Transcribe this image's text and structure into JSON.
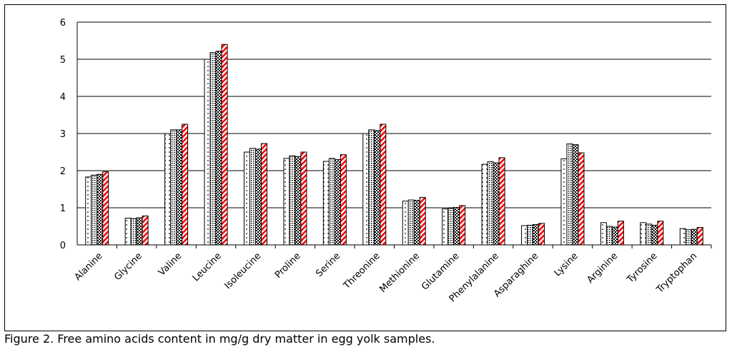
{
  "caption": "Figure 2. Free amino acids content in mg/g dry matter in egg yolk samples.",
  "chart_data": {
    "type": "bar",
    "title": "",
    "xlabel": "",
    "ylabel": "",
    "ylim": [
      0,
      6
    ],
    "yticks": [
      "0",
      "1",
      "2",
      "3",
      "4",
      "5",
      "6"
    ],
    "grid": true,
    "legend": "none",
    "categories": [
      "Alanine",
      "Glycine",
      "Valine",
      "Leucine",
      "Isoleucine",
      "Proline",
      "Serine",
      "Threonine",
      "Methionine",
      "Glutamine",
      "Phenylalanine",
      "Asparaghine",
      "Lysine",
      "Arginine",
      "Tyrosine",
      "Tryptophan"
    ],
    "series": [
      {
        "pattern": "sparse-dots",
        "color": "#000000",
        "values": [
          1.83,
          0.72,
          3.0,
          5.0,
          2.5,
          2.33,
          2.25,
          3.0,
          1.18,
          0.97,
          2.17,
          0.52,
          2.32,
          0.6,
          0.6,
          0.44
        ]
      },
      {
        "pattern": "dense-dots",
        "color": "#000000",
        "values": [
          1.88,
          0.71,
          3.1,
          5.18,
          2.6,
          2.4,
          2.33,
          3.1,
          1.21,
          0.98,
          2.24,
          0.53,
          2.72,
          0.5,
          0.56,
          0.41
        ]
      },
      {
        "pattern": "checker",
        "color": "#000000",
        "values": [
          1.9,
          0.73,
          3.1,
          5.22,
          2.58,
          2.38,
          2.3,
          3.08,
          1.2,
          1.01,
          2.21,
          0.55,
          2.7,
          0.48,
          0.53,
          0.42
        ]
      },
      {
        "pattern": "red-diagonal",
        "color": "#ff0000",
        "values": [
          1.97,
          0.78,
          3.25,
          5.4,
          2.73,
          2.5,
          2.43,
          3.25,
          1.28,
          1.06,
          2.35,
          0.58,
          2.48,
          0.64,
          0.64,
          0.47
        ]
      }
    ]
  }
}
